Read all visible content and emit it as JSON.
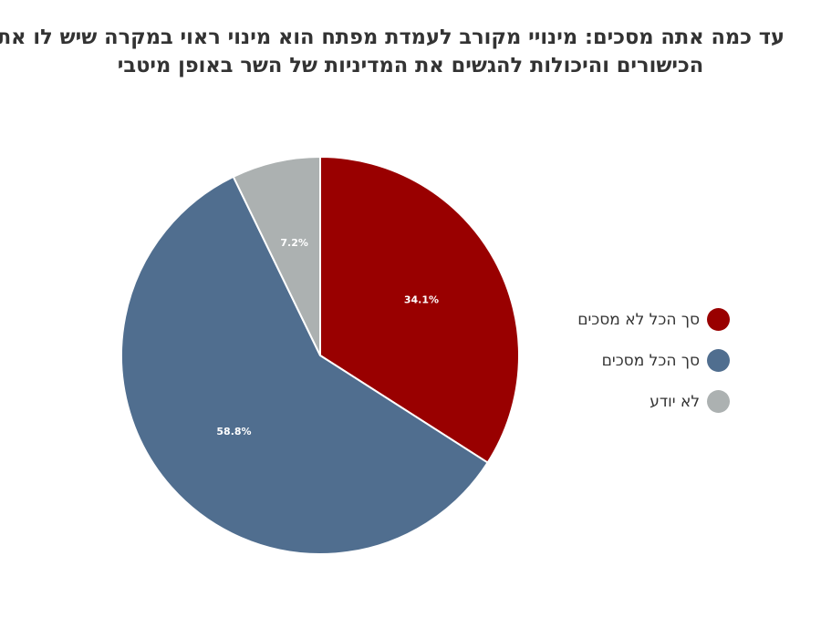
{
  "chart_data": {
    "type": "pie",
    "title": [
      "עד כמה אתה מסכים: מינויי מקורב לעמדת מפתח הוא מינוי ראוי במקרה שיש לו את",
      "הכישורים והיכולות להגשים את המדיניות של השר באופן מיטבי"
    ],
    "slices": [
      {
        "name": "סך הכל לא מסכים",
        "value": 34.1,
        "label": "34.1%",
        "color": "#990000"
      },
      {
        "name": "סך הכל מסכים",
        "value": 58.8,
        "label": "58.8%",
        "color": "#506e8f"
      },
      {
        "name": "לא יודע",
        "value": 7.2,
        "label": "7.2%",
        "color": "#acb1b1"
      }
    ],
    "start_angle_deg": 0,
    "direction": "clockwise",
    "legend_position": "right",
    "label_color": "#ffffff"
  }
}
